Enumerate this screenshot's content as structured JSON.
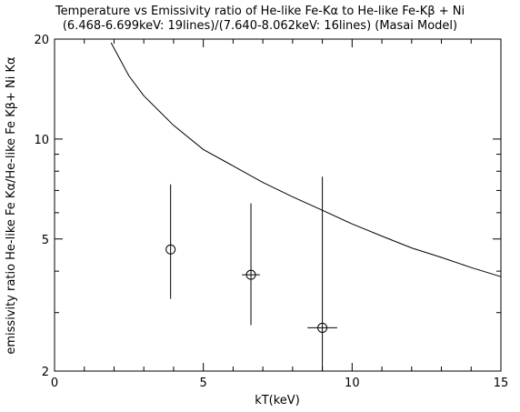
{
  "chart_data": {
    "type": "scatter",
    "title": "Temperature vs Emissivity ratio of He-like Fe-Kα to He-like Fe-Kβ + Ni",
    "subtitle": "(6.468-6.699keV: 19lines)/(7.640-8.062keV: 16lines) (Masai Model)",
    "xlabel": "kT(keV)",
    "ylabel": "emissivity ratio He-like Fe Kα/He-like Fe Kβ+ Ni Kα",
    "xlim": [
      0,
      15
    ],
    "ylim": [
      2,
      20
    ],
    "yscale": "log",
    "x_ticks": [
      0,
      5,
      10,
      15
    ],
    "y_ticks": [
      2,
      5,
      10,
      20
    ],
    "model_curve": {
      "x": [
        1.9,
        2.5,
        3.0,
        4.0,
        5.0,
        6.0,
        7.0,
        8.0,
        9.0,
        10.0,
        11.0,
        12.0,
        13.0,
        14.0,
        15.0
      ],
      "y": [
        19.5,
        15.5,
        13.5,
        11.0,
        9.3,
        8.3,
        7.4,
        6.7,
        6.1,
        5.55,
        5.1,
        4.7,
        4.4,
        4.1,
        3.85
      ]
    },
    "points": [
      {
        "x": 3.9,
        "y": 4.65,
        "y_low": 3.3,
        "y_high": 7.3,
        "x_low": 3.9,
        "x_high": 3.9
      },
      {
        "x": 6.6,
        "y": 3.9,
        "y_low": 2.75,
        "y_high": 6.4,
        "x_low": 6.3,
        "x_high": 6.9
      },
      {
        "x": 9.0,
        "y": 2.7,
        "y_low": 2.0,
        "y_high": 7.7,
        "x_low": 8.5,
        "x_high": 9.5
      }
    ]
  }
}
